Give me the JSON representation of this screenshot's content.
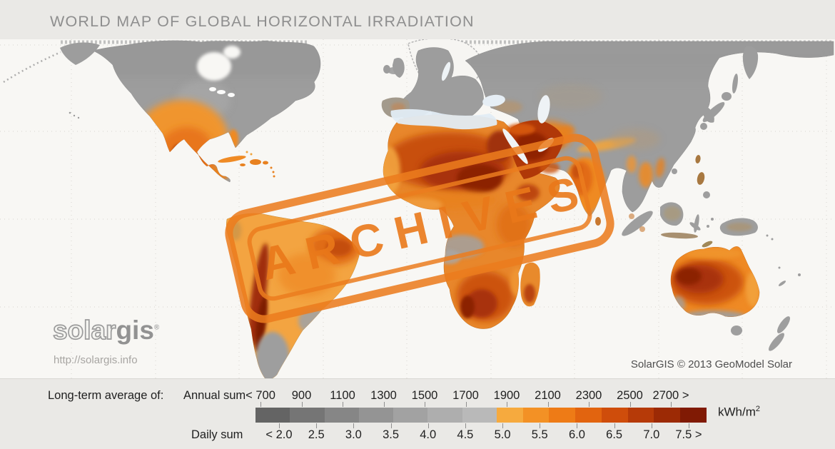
{
  "page": {
    "title": "WORLD MAP OF GLOBAL HORIZONTAL IRRADIATION"
  },
  "stamp": {
    "text": "ARCHIVES",
    "letters": [
      "A",
      "R",
      "C",
      "H",
      "I",
      "V",
      "E",
      "S"
    ],
    "color": "#eb7c1e"
  },
  "branding": {
    "logo_outline": "solar",
    "logo_solid": "gis",
    "logo_mark": "®",
    "website": "http://solargis.info"
  },
  "map": {
    "copyright": "SolarGIS © 2013 GeoModel Solar"
  },
  "legend": {
    "prefix_label": "Long-term average of:",
    "annual_label": "Annual sum",
    "daily_label": "Daily sum",
    "unit": "kWh/m",
    "unit_exponent": "2",
    "annual_values": [
      "< 700",
      "900",
      "1100",
      "1300",
      "1500",
      "1700",
      "1900",
      "2100",
      "2300",
      "2500",
      "2700 >"
    ],
    "daily_values": [
      "< 2.0",
      "2.5",
      "3.0",
      "3.5",
      "4.0",
      "4.5",
      "5.0",
      "5.5",
      "6.0",
      "6.5",
      "7.0",
      "7.5 >"
    ],
    "colorbar_gray": [
      "#646464",
      "#757575",
      "#868686",
      "#949494",
      "#a2a2a2",
      "#aeaeae",
      "#b9b9b9"
    ],
    "colorbar_warm": [
      "#f6aa3e",
      "#f39125",
      "#ee7b16",
      "#e2640f",
      "#cf4d0b",
      "#b63a08",
      "#9c2a05",
      "#801a04"
    ]
  },
  "colors": {
    "ocean": "#f8f7f4",
    "land_low_irradiation": "#9d9d9d",
    "land_high_irradiation": "#a83108",
    "stamp_orange": "#eb7c1e",
    "background": "#eae9e6"
  }
}
